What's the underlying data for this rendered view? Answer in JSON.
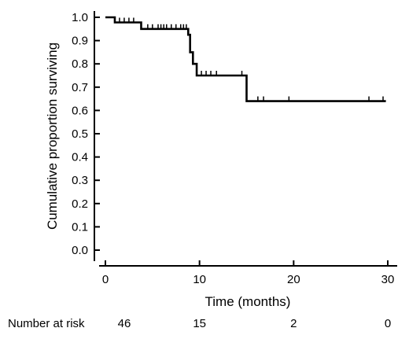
{
  "chart_data": {
    "type": "line",
    "subtype": "kaplan-meier",
    "title": "",
    "xlabel": "Time (months)",
    "ylabel": "Cumulative proportion surviving",
    "xlim": [
      0,
      30
    ],
    "ylim": [
      0,
      1.0
    ],
    "x_ticks": [
      0,
      10,
      20,
      30
    ],
    "y_ticks": [
      0.0,
      0.1,
      0.2,
      0.3,
      0.4,
      0.5,
      0.6,
      0.7,
      0.8,
      0.9,
      1.0
    ],
    "x_tick_labels": [
      "0",
      "10",
      "20",
      "30"
    ],
    "y_tick_labels": [
      "0.0",
      "0.1",
      "0.2",
      "0.3",
      "0.4",
      "0.5",
      "0.6",
      "0.7",
      "0.8",
      "0.9",
      "1.0"
    ],
    "grid": false,
    "series": [
      {
        "steps": [
          [
            0,
            1.0
          ],
          [
            1.0,
            0.978
          ],
          [
            3.8,
            0.95
          ],
          [
            8.8,
            0.925
          ],
          [
            9.0,
            0.85
          ],
          [
            9.3,
            0.8
          ],
          [
            9.7,
            0.75
          ],
          [
            15.0,
            0.64
          ],
          [
            29.8,
            0.64
          ]
        ],
        "censored": [
          [
            1.5,
            0.978
          ],
          [
            2.0,
            0.978
          ],
          [
            2.5,
            0.978
          ],
          [
            3.0,
            0.978
          ],
          [
            4.5,
            0.95
          ],
          [
            5.0,
            0.95
          ],
          [
            5.6,
            0.95
          ],
          [
            5.9,
            0.95
          ],
          [
            6.2,
            0.95
          ],
          [
            6.5,
            0.95
          ],
          [
            7.0,
            0.95
          ],
          [
            7.5,
            0.95
          ],
          [
            8.0,
            0.95
          ],
          [
            8.3,
            0.95
          ],
          [
            8.6,
            0.95
          ],
          [
            10.2,
            0.75
          ],
          [
            10.7,
            0.75
          ],
          [
            11.2,
            0.75
          ],
          [
            11.8,
            0.75
          ],
          [
            14.5,
            0.75
          ],
          [
            16.2,
            0.64
          ],
          [
            16.8,
            0.64
          ],
          [
            19.5,
            0.64
          ],
          [
            28.0,
            0.64
          ],
          [
            29.5,
            0.64
          ]
        ]
      }
    ],
    "number_at_risk": {
      "label": "Number at risk",
      "times": [
        0,
        10,
        20,
        30
      ],
      "values": [
        "46",
        "15",
        "2",
        "0"
      ]
    }
  }
}
